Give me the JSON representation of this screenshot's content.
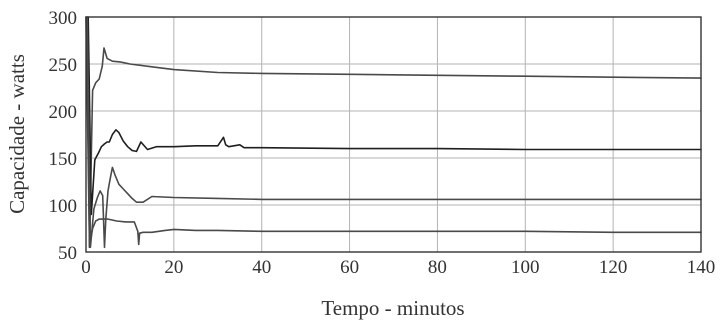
{
  "chart_data": {
    "type": "line",
    "xlabel": "Tempo - minutos",
    "ylabel": "Capacidade - watts",
    "xlim": [
      0,
      140
    ],
    "ylim": [
      50,
      300
    ],
    "xticks": [
      "0",
      "20",
      "40",
      "60",
      "80",
      "100",
      "120",
      "140"
    ],
    "yticks": [
      "50",
      "100",
      "150",
      "200",
      "250",
      "300"
    ],
    "grid": true,
    "colors": [
      "#4a4a4a",
      "#1f1f1f",
      "#4a4a4a",
      "#4a4a4a"
    ],
    "series": [
      {
        "x": [
          0,
          0.8,
          1.5,
          2.2,
          3.0,
          3.7,
          4.1,
          4.8,
          6,
          8,
          10,
          15,
          20,
          30,
          40,
          60,
          80,
          100,
          120,
          140
        ],
        "y": [
          300,
          55,
          222,
          230,
          234,
          248,
          267,
          256,
          253,
          252,
          250,
          247,
          244,
          241,
          240,
          239,
          238,
          237,
          236,
          235
        ]
      },
      {
        "x": [
          0.5,
          1.2,
          2.0,
          2.8,
          3.5,
          4.2,
          4.8,
          5.3,
          6.0,
          6.8,
          7.5,
          8.5,
          9.5,
          10.5,
          11.5,
          12.5,
          14,
          16,
          20,
          25,
          30,
          31.3,
          31.8,
          32.5,
          35,
          36,
          40,
          60,
          80,
          100,
          120,
          140
        ],
        "y": [
          300,
          90,
          148,
          155,
          162,
          165,
          167,
          167,
          175,
          180,
          177,
          168,
          162,
          158,
          157,
          167,
          159,
          162,
          162,
          163,
          163,
          172,
          164,
          162,
          164,
          161,
          161,
          160,
          160,
          159,
          159,
          159
        ]
      },
      {
        "x": [
          0.3,
          1.0,
          1.8,
          2.6,
          3.2,
          3.8,
          4.2,
          4.5,
          5.0,
          5.5,
          6.0,
          6.6,
          7.5,
          8.5,
          9.5,
          10.5,
          11.5,
          13,
          15,
          20,
          30,
          40,
          60,
          80,
          100,
          120,
          140
        ],
        "y": [
          300,
          55,
          96,
          108,
          115,
          110,
          55,
          85,
          115,
          128,
          140,
          132,
          122,
          117,
          112,
          107,
          103,
          103,
          109,
          108,
          107,
          106,
          106,
          106,
          106,
          106,
          106
        ]
      },
      {
        "x": [
          0.2,
          0.8,
          1.5,
          2.2,
          3.0,
          4.0,
          5.0,
          7.0,
          9.0,
          11.0,
          11.8,
          12.0,
          12.2,
          13,
          15,
          18,
          20,
          25,
          30,
          40,
          60,
          80,
          100,
          120,
          140
        ],
        "y": [
          300,
          55,
          75,
          83,
          85,
          85,
          85,
          83,
          82,
          82,
          72,
          58,
          70,
          71,
          71,
          73,
          74,
          73,
          73,
          72,
          72,
          72,
          72,
          71,
          71
        ]
      }
    ]
  }
}
